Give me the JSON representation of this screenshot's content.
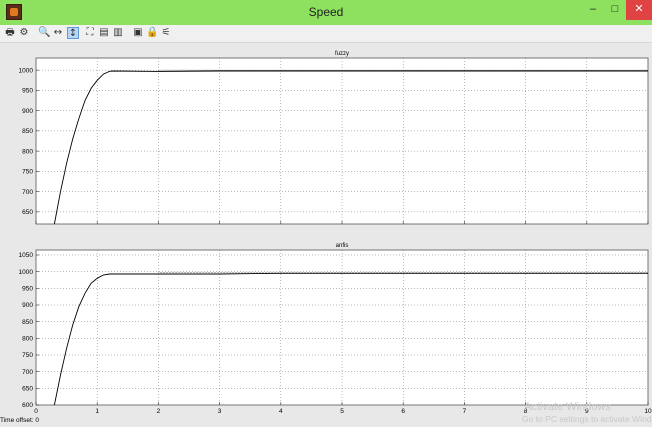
{
  "window": {
    "title": "Speed",
    "minimize": "–",
    "maximize": "□",
    "close": "✕"
  },
  "toolbar": {
    "tools": [
      {
        "name": "print-icon",
        "glyph": "🖶"
      },
      {
        "name": "params-icon",
        "glyph": "⚙"
      },
      {
        "name": "zoom-icon",
        "glyph": "🔍"
      },
      {
        "name": "zoom-x-icon",
        "glyph": "↔"
      },
      {
        "name": "zoom-y-icon",
        "glyph": "↕"
      },
      {
        "name": "autoscale-icon",
        "glyph": "⛶"
      },
      {
        "name": "save-axes-icon",
        "glyph": "▤"
      },
      {
        "name": "restore-axes-icon",
        "glyph": "▥"
      },
      {
        "name": "float-icon",
        "glyph": "▣"
      },
      {
        "name": "lock-icon",
        "glyph": "🔒"
      },
      {
        "name": "selection-icon",
        "glyph": "⚟"
      }
    ]
  },
  "chart_data": [
    {
      "type": "line",
      "title": "fuzzy",
      "xlim": [
        0,
        10
      ],
      "ylim": [
        620,
        1030
      ],
      "xticks": [
        0,
        1,
        2,
        3,
        4,
        5,
        6,
        7,
        8,
        9,
        10
      ],
      "yticks": [
        650,
        700,
        750,
        800,
        850,
        900,
        950,
        1000
      ],
      "grid": true,
      "series": [
        {
          "color": "#000000",
          "x": [
            0.3,
            0.4,
            0.5,
            0.6,
            0.7,
            0.8,
            0.9,
            1.0,
            1.1,
            1.2,
            1.25,
            2,
            3,
            4,
            5,
            6,
            7,
            8,
            9,
            10
          ],
          "y": [
            620,
            700,
            770,
            830,
            880,
            925,
            955,
            975,
            990,
            997,
            998,
            997,
            998,
            998,
            998,
            998,
            998,
            998,
            998,
            998
          ]
        }
      ]
    },
    {
      "type": "line",
      "title": "anfis",
      "xlim": [
        0,
        10
      ],
      "ylim": [
        600,
        1065
      ],
      "xticks": [
        0,
        1,
        2,
        3,
        4,
        5,
        6,
        7,
        8,
        9,
        10
      ],
      "yticks": [
        600,
        650,
        700,
        750,
        800,
        850,
        900,
        950,
        1000,
        1050
      ],
      "grid": true,
      "series": [
        {
          "color": "#000000",
          "x": [
            0.3,
            0.4,
            0.5,
            0.6,
            0.7,
            0.8,
            0.9,
            1.0,
            1.1,
            1.2,
            2,
            3,
            4,
            5,
            6,
            7,
            8,
            9,
            10
          ],
          "y": [
            600,
            690,
            770,
            840,
            895,
            935,
            965,
            980,
            990,
            993,
            993,
            993,
            995,
            995,
            995,
            995,
            995,
            995,
            995
          ]
        }
      ]
    }
  ],
  "status": {
    "time_offset_label": "Time offset:",
    "time_offset_value": "0"
  },
  "watermark": {
    "line1": "Activate Windows",
    "line2": "Go to PC settings to activate Windows."
  }
}
